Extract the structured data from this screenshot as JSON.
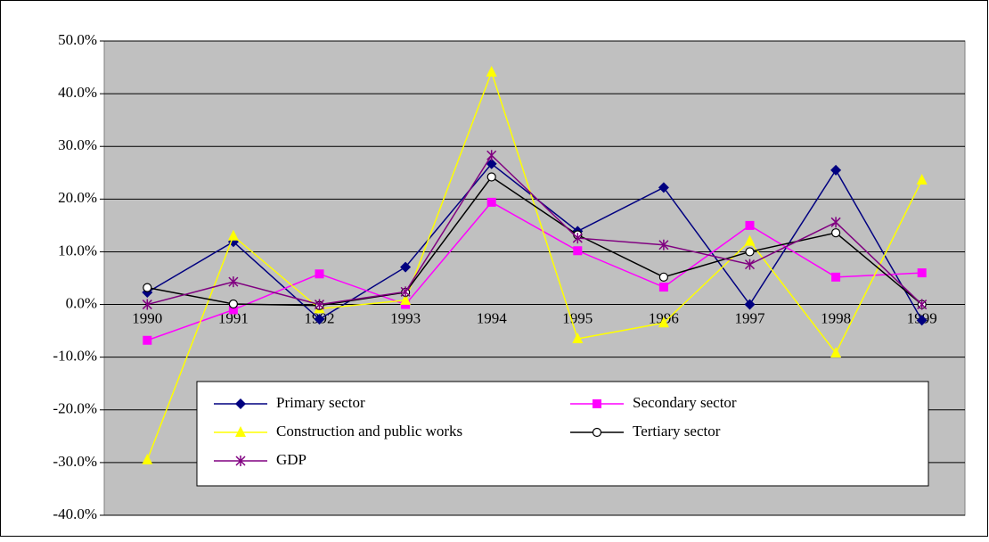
{
  "chart_data": {
    "type": "line",
    "categories": [
      "1990",
      "1991",
      "1992",
      "1993",
      "1994",
      "1995",
      "1996",
      "1997",
      "1998",
      "1999"
    ],
    "series": [
      {
        "name": "Primary sector",
        "color": "#000080",
        "marker": "diamond",
        "values": [
          2.3,
          11.9,
          -2.8,
          7.1,
          26.7,
          13.9,
          22.2,
          0.0,
          25.5,
          -3.0
        ]
      },
      {
        "name": "Secondary sector",
        "color": "#ff00ff",
        "marker": "square",
        "values": [
          -6.8,
          -1.0,
          5.8,
          0.0,
          19.4,
          10.2,
          3.3,
          15.0,
          5.2,
          6.0
        ]
      },
      {
        "name": "Construction and public works",
        "color": "#ffff00",
        "marker": "triangle",
        "values": [
          -29.5,
          13.0,
          -0.8,
          0.8,
          44.1,
          -6.5,
          -3.5,
          12.0,
          -9.2,
          23.6
        ]
      },
      {
        "name": "Tertiary sector",
        "color": "#000000",
        "marker": "circle",
        "values": [
          3.2,
          0.1,
          -0.2,
          2.3,
          24.2,
          13.2,
          5.2,
          10.0,
          13.6,
          0.0
        ]
      },
      {
        "name": "GDP",
        "color": "#800080",
        "marker": "star",
        "values": [
          0.0,
          4.3,
          0.0,
          2.4,
          28.3,
          12.6,
          11.3,
          7.6,
          15.6,
          0.0
        ]
      }
    ],
    "ylim": [
      -40,
      50
    ],
    "yticks": [
      {
        "value": -40,
        "label": "-40.0%"
      },
      {
        "value": -30,
        "label": "-30.0%"
      },
      {
        "value": -20,
        "label": "-20.0%"
      },
      {
        "value": -10,
        "label": "-10.0%"
      },
      {
        "value": 0,
        "label": "0.0%"
      },
      {
        "value": 10,
        "label": "10.0%"
      },
      {
        "value": 20,
        "label": "20.0%"
      },
      {
        "value": 30,
        "label": "30.0%"
      },
      {
        "value": 40,
        "label": "40.0%"
      },
      {
        "value": 50,
        "label": "50.0%"
      }
    ],
    "grid": true,
    "background": "#c0c0c0"
  }
}
